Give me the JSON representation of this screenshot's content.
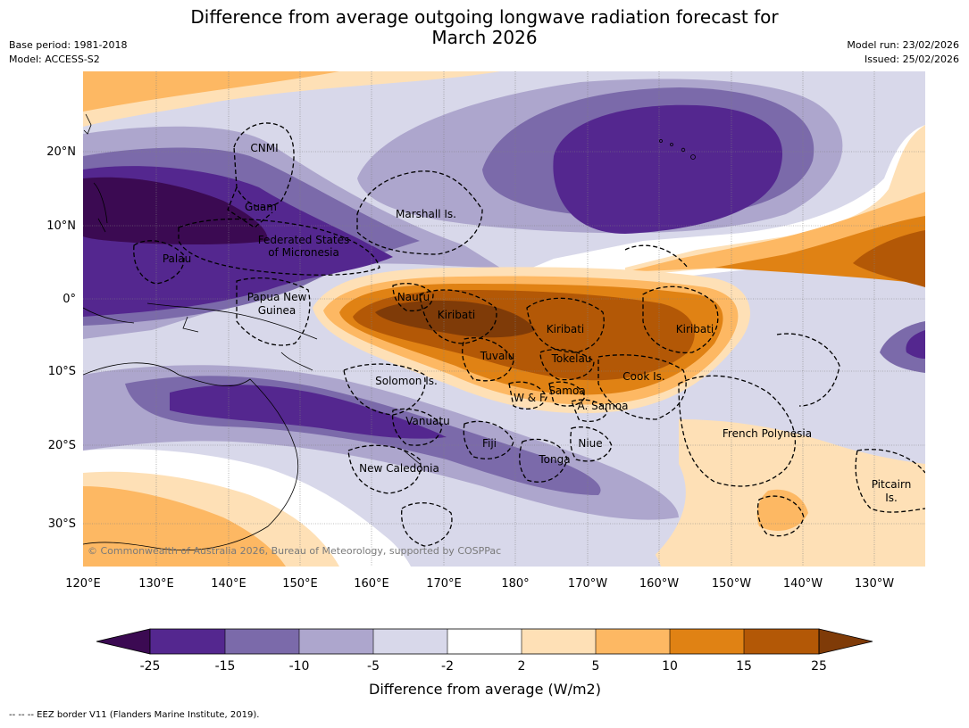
{
  "title_line1": "Difference from average outgoing longwave radiation forecast for",
  "title_line2": "March 2026",
  "base_period": "Base period: 1981-2018",
  "model": "Model: ACCESS-S2",
  "model_run": "Model run: 23/02/2026",
  "issued": "Issued: 25/02/2026",
  "lon_ticks": [
    "120°E",
    "130°E",
    "140°E",
    "150°E",
    "160°E",
    "170°E",
    "180°",
    "170°W",
    "160°W",
    "150°W",
    "140°W",
    "130°W"
  ],
  "lat_ticks": [
    "20°N",
    "10°N",
    "0°",
    "10°S",
    "20°S",
    "30°S"
  ],
  "places": {
    "cnmi": "CNMI",
    "guam": "Guam",
    "marshall": "Marshall Is.",
    "fsm1": "Federated States",
    "fsm2": "of Micronesia",
    "palau": "Palau",
    "png1": "Papua New",
    "png2": "Guinea",
    "nauru": "Nauru",
    "kiribati_w": "Kiribati",
    "kiribati_c": "Kiribati",
    "kiribati_e": "Kiribati",
    "tuvalu": "Tuvalu",
    "tokelau": "Tokelau",
    "cook": "Cook Is.",
    "solomon": "Solomon Is.",
    "wf": "W & F",
    "samoa": "Samoa",
    "asamoa": "A. Samoa",
    "vanuatu": "Vanuatu",
    "fiji": "Fiji",
    "niue": "Niue",
    "tonga": "Tonga",
    "frenchpoly": "French Polynesia",
    "newcal": "New Caledonia",
    "pitcairn1": "Pitcairn",
    "pitcairn2": "Is."
  },
  "credit": "© Commonwealth of Australia 2026, Bureau of Meteorology, supported by COSPPac",
  "colorbar": {
    "title": "Difference from average (W/m2)",
    "labels": [
      "-25",
      "-15",
      "-10",
      "-5",
      "-2",
      "2",
      "5",
      "10",
      "15",
      "25"
    ],
    "colors": {
      "below_min": "#3b0a52",
      "neg25_15": "#54278f",
      "neg15_10": "#7b6aaa",
      "neg10_5": "#ada6cd",
      "neg5_2": "#d8d8ea",
      "neg2_2": "#ffffff",
      "pos2_5": "#fee0b6",
      "pos5_10": "#fdb863",
      "pos10_15": "#e08214",
      "pos15_25": "#b35806",
      "above_max": "#7f3b08"
    }
  },
  "footnote": "--  --  -- EEZ border V11 (Flanders Marine Institute, 2019)."
}
